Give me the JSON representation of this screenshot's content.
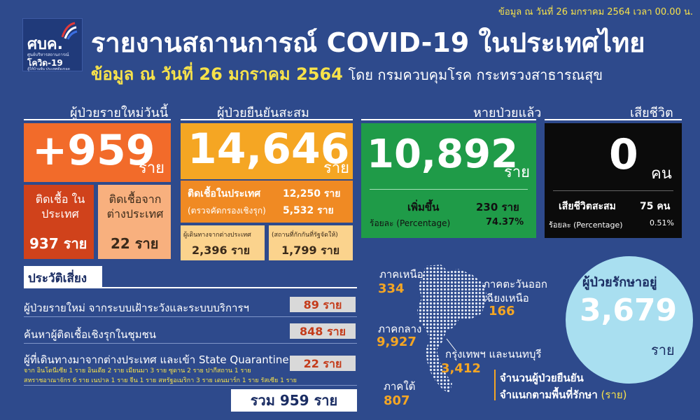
{
  "top_date": "ข้อมูล ณ วันที่ 26 มกราคม 2564 เวลา 00.00 น.",
  "logo": {
    "name": "ศบค.",
    "subline": "ศูนย์บริหารสถานการณ์",
    "covid": "โควิด-19",
    "tagline": "สู้ให้บ้านพ้น ประเทศต้องรอด"
  },
  "title": "รายงานสถานการณ์ COVID-19 ในประเทศไทย",
  "subtitle": {
    "date": "ข้อมูล ณ วันที่ 26 มกราคม 2564",
    "source": "โดย กรมควบคุมโรค กระทรวงสาธารณสุข"
  },
  "new_cases": {
    "header": "ผู้ป่วยรายใหม่วันนี้",
    "value": "+959",
    "unit": "ราย",
    "local_label": "ติดเชื้อ ในประเทศ",
    "local_value": "937 ราย",
    "abroad_label": "ติดเชื้อจาก ต่างประเทศ",
    "abroad_value": "22 ราย"
  },
  "cumulative": {
    "header": "ผู้ป่วยยืนยันสะสม",
    "value": "14,646",
    "unit": "ราย",
    "local_label": "ติดเชื้อในประเทศ",
    "local_value": "12,250 ราย",
    "active_label": "(ตรวจคัดกรองเชิงรุก)",
    "active_value": "5,532 ราย",
    "travel_label": "ผู้เดินทางจากต่างประเทศ",
    "travel_value": "2,396 ราย",
    "quarantine_label": "(สถานที่กักกันที่รัฐจัดให้)",
    "quarantine_value": "1,799 ราย"
  },
  "recovered": {
    "header": "หายป่วยแล้ว",
    "value": "10,892",
    "unit": "ราย",
    "increase_label": "เพิ่มขึ้น",
    "increase_value": "230 ราย",
    "pct_label": "ร้อยละ (Percentage)",
    "pct_value": "74.37%"
  },
  "deaths": {
    "header": "เสียชีวิต",
    "value": "0",
    "unit": "คน",
    "cum_label": "เสียชีวิตสะสม",
    "cum_value": "75 คน",
    "pct_label": "ร้อยละ (Percentage)",
    "pct_value": "0.51%"
  },
  "risk": {
    "header": "ประวัติเสี่ยง",
    "rows": [
      {
        "label": "ผู้ป่วยรายใหม่ จากระบบเฝ้าระวังและระบบบริการฯ",
        "value": "89 ราย"
      },
      {
        "label": "ค้นหาผู้ติดเชื้อเชิงรุกในชุมชน",
        "value": "848 ราย"
      },
      {
        "label": "ผู้ที่เดินทางมาจากต่างประเทศ และเข้า State Quarantine",
        "value": "22 ราย"
      }
    ],
    "note1": "จาก อินโดนีเซีย 1 ราย อินเดีย 2 ราย เมียนมา 3 ราย ซูดาน 2 ราย ปากีสถาน 1 ราย",
    "note2": "สหราชอาณาจักร 6 ราย เนปาล 1 ราย จีน 1 ราย สหรัฐอเมริกา 3 ราย เดนมาร์ก 1 ราย รัสเซีย 1 ราย",
    "total": "รวม 959 ราย"
  },
  "regions": [
    {
      "name": "ภาคเหนือ",
      "value": "334"
    },
    {
      "name": "ภาคกลาง",
      "value": "9,927"
    },
    {
      "name": "ภาคใต้",
      "value": "807"
    },
    {
      "name": "ภาคตะวันออก เฉียงเหนือ",
      "value": "166"
    },
    {
      "name": "กรุงเทพฯ และนนทบุรี",
      "value": "3,412"
    }
  ],
  "region_caption": {
    "line1": "จำนวนผู้ป่วยยืนยัน",
    "line2": "จำแนกตามพื้นที่รักษา",
    "line2b": "(ราย)"
  },
  "in_treatment": {
    "header": "ผู้ป่วยรักษาอยู่",
    "value": "3,679",
    "unit": "ราย"
  },
  "colors": {
    "background": "#2e4a8c",
    "orange": "#f26b2a",
    "amber": "#f5a623",
    "green": "#1f9b48",
    "black": "#0b0b0b",
    "yellow": "#f7e24a",
    "circle": "#a9dff0"
  }
}
